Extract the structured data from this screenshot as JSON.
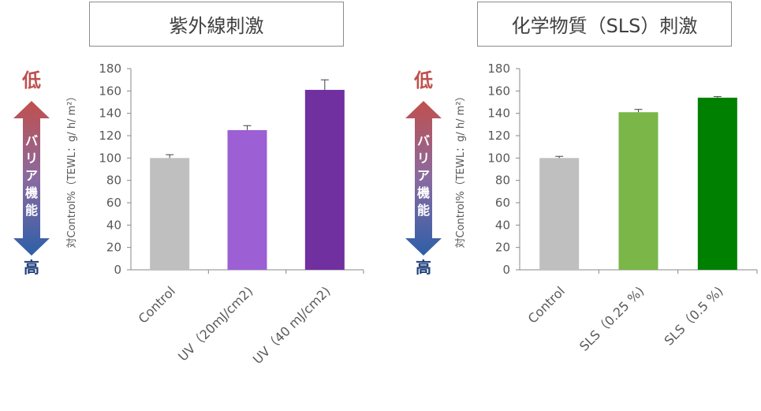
{
  "panels": [
    {
      "title": "紫外線刺激",
      "barrier": {
        "top": "低",
        "bottom": "高",
        "label": [
          "バ",
          "リ",
          "ア",
          "機",
          "能"
        ]
      },
      "ylabel": "対Control%（TEWL：g/ h/ m²）"
    },
    {
      "title": "化学物質（SLS）刺激",
      "barrier": {
        "top": "低",
        "bottom": "高",
        "label": [
          "バ",
          "リ",
          "ア",
          "機",
          "能"
        ]
      },
      "ylabel": "対Control%（TEWL：g/ h/ m²）"
    }
  ],
  "chart_data": [
    {
      "type": "bar",
      "title": "紫外線刺激",
      "ylabel": "対Control%（TEWL：g/ h/ m²）",
      "ylim": [
        0,
        180
      ],
      "yticks": [
        0,
        20,
        40,
        60,
        80,
        100,
        120,
        140,
        160,
        180
      ],
      "categories": [
        "Control",
        "UV（20mJ/cm2)",
        "UV（40 mJ/cm2)"
      ],
      "values": [
        100,
        125,
        161
      ],
      "errors": [
        3,
        4,
        9
      ],
      "colors": [
        "#bfbfbf",
        "#9c5fd4",
        "#7030a0"
      ],
      "grid": false
    },
    {
      "type": "bar",
      "title": "化学物質（SLS）刺激",
      "ylabel": "対Control%（TEWL：g/ h/ m²）",
      "ylim": [
        0,
        180
      ],
      "yticks": [
        0,
        20,
        40,
        60,
        80,
        100,
        120,
        140,
        160,
        180
      ],
      "categories": [
        "Control",
        "SLS（0.25 %)",
        "SLS（0.5 %)"
      ],
      "values": [
        100,
        141,
        154
      ],
      "errors": [
        1.5,
        2.5,
        1
      ],
      "colors": [
        "#bfbfbf",
        "#7ab648",
        "#008000"
      ],
      "grid": false
    }
  ]
}
